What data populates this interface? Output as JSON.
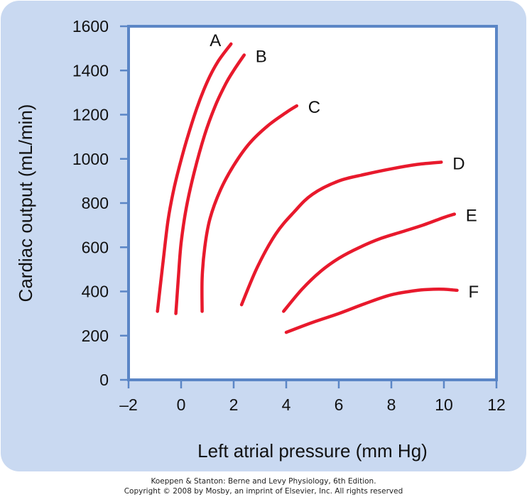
{
  "chart_data": {
    "type": "line",
    "title": "",
    "xlabel": "Left atrial pressure (mm Hg)",
    "ylabel": "Cardiac output (mL/min)",
    "xlim": [
      -2,
      12
    ],
    "ylim": [
      0,
      1600
    ],
    "xticks": [
      -2,
      0,
      2,
      4,
      6,
      8,
      10,
      12
    ],
    "xtick_labels": [
      "–2",
      "0",
      "2",
      "4",
      "6",
      "8",
      "10",
      "12"
    ],
    "yticks": [
      0,
      200,
      400,
      600,
      800,
      1000,
      1200,
      1400,
      1600
    ],
    "ytick_labels": [
      "0",
      "200",
      "400",
      "600",
      "800",
      "1000",
      "1200",
      "1400",
      "1600"
    ],
    "grid": false,
    "series": [
      {
        "name": "A",
        "x": [
          -0.9,
          -0.7,
          -0.5,
          -0.3,
          -0.1,
          0.2,
          0.6,
          1.0,
          1.4,
          1.9
        ],
        "y": [
          310,
          520,
          720,
          850,
          950,
          1080,
          1230,
          1350,
          1440,
          1520
        ]
      },
      {
        "name": "B",
        "x": [
          -0.2,
          -0.1,
          0.0,
          0.2,
          0.5,
          0.9,
          1.3,
          1.7,
          2.0,
          2.4
        ],
        "y": [
          300,
          470,
          620,
          780,
          940,
          1110,
          1240,
          1340,
          1400,
          1470
        ]
      },
      {
        "name": "C",
        "x": [
          0.8,
          0.8,
          0.9,
          1.1,
          1.5,
          2.0,
          2.6,
          3.3,
          4.0,
          4.4
        ],
        "y": [
          310,
          460,
          600,
          730,
          860,
          970,
          1070,
          1150,
          1210,
          1240
        ]
      },
      {
        "name": "D",
        "x": [
          2.3,
          2.9,
          3.6,
          4.3,
          5.0,
          6.0,
          7.0,
          8.0,
          9.0,
          9.9
        ],
        "y": [
          340,
          510,
          660,
          760,
          840,
          900,
          930,
          955,
          975,
          985
        ]
      },
      {
        "name": "E",
        "x": [
          3.9,
          4.6,
          5.3,
          6.0,
          6.8,
          7.6,
          8.4,
          9.2,
          10.0,
          10.4
        ],
        "y": [
          310,
          410,
          490,
          550,
          600,
          640,
          670,
          700,
          735,
          750
        ]
      },
      {
        "name": "F",
        "x": [
          4.0,
          5.0,
          6.0,
          7.0,
          8.0,
          9.0,
          9.6,
          10.0,
          10.5
        ],
        "y": [
          215,
          260,
          300,
          345,
          385,
          405,
          410,
          410,
          405
        ]
      }
    ],
    "line_color": "#e8192c",
    "plot_area_color": "#ffffff",
    "plot_border_color": "#5b86c6",
    "background_color": "#c9d9f1"
  },
  "credit": {
    "line1": "Koeppen & Stanton: Berne and Levy Physiology, 6th Edition.",
    "line2": "Copyright © 2008 by Mosby, an imprint of Elsevier, Inc. All rights reserved"
  }
}
